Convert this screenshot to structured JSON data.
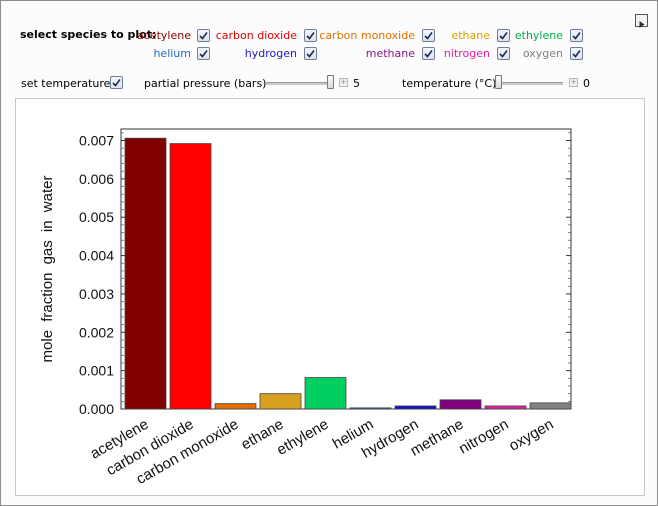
{
  "controls": {
    "select_label": "select species to plot:",
    "species": [
      {
        "name": "acetylene",
        "color": "#8b0000",
        "checked": true
      },
      {
        "name": "carbon dioxide",
        "color": "#e00000",
        "checked": true
      },
      {
        "name": "carbon monoxide",
        "color": "#e07000",
        "checked": true
      },
      {
        "name": "ethane",
        "color": "#d4a000",
        "checked": true
      },
      {
        "name": "ethylene",
        "color": "#00b050",
        "checked": true
      },
      {
        "name": "helium",
        "color": "#1f6fbf",
        "checked": true
      },
      {
        "name": "hydrogen",
        "color": "#1c1cc0",
        "checked": true
      },
      {
        "name": "methane",
        "color": "#8a1a8a",
        "checked": true
      },
      {
        "name": "nitrogen",
        "color": "#e020a0",
        "checked": true
      },
      {
        "name": "oxygen",
        "color": "#7f7f7f",
        "checked": true
      }
    ],
    "set_temperature_label": "set temperature",
    "set_temperature_checked": true,
    "pressure_label": "partial pressure (bars)",
    "pressure_value": "5",
    "pressure_fraction": 0.98,
    "temperature_label": "temperature (°C)",
    "temperature_value": "0",
    "temperature_fraction": 0.0
  },
  "chart_data": {
    "type": "bar",
    "ylabel": "mole fraction gas in water",
    "ylim": [
      0,
      0.0073
    ],
    "yticks": [
      "0.000",
      "0.001",
      "0.002",
      "0.003",
      "0.004",
      "0.005",
      "0.006",
      "0.007"
    ],
    "categories": [
      "acetylene",
      "carbon dioxide",
      "carbon monoxide",
      "ethane",
      "ethylene",
      "helium",
      "hydrogen",
      "methane",
      "nitrogen",
      "oxygen"
    ],
    "values": [
      0.00706,
      0.00692,
      0.00014,
      0.0004,
      0.00082,
      3e-05,
      8e-05,
      0.00024,
      8e-05,
      0.00016
    ],
    "colors": [
      "#800000",
      "#ff0000",
      "#e06e00",
      "#d8a020",
      "#00d060",
      "#1f6fbf",
      "#1010d0",
      "#800080",
      "#e020a0",
      "#808080"
    ]
  }
}
